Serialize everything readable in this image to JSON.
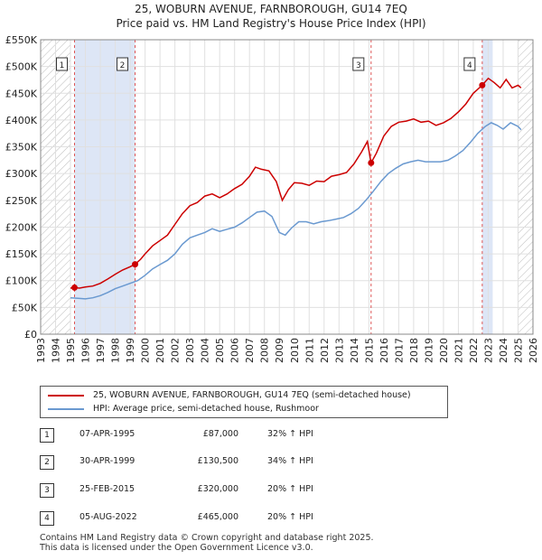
{
  "title_line1": "25, WOBURN AVENUE, FARNBOROUGH, GU14 7EQ",
  "title_line2": "Price paid vs. HM Land Registry's House Price Index (HPI)",
  "colors": {
    "property": "#cc0000",
    "hpi": "#6a99d0",
    "shade": "#dde6f6",
    "hatch": "#bbbbbb",
    "vline": "#dd5555"
  },
  "legend": {
    "property_label": "25, WOBURN AVENUE, FARNBOROUGH, GU14 7EQ (semi-detached house)",
    "hpi_label": "HPI: Average price, semi-detached house, Rushmoor"
  },
  "sales": [
    {
      "num": "1",
      "date": "07-APR-1995",
      "price": "£87,000",
      "hpi": "32% ↑ HPI"
    },
    {
      "num": "2",
      "date": "30-APR-1999",
      "price": "£130,500",
      "hpi": "34% ↑ HPI"
    },
    {
      "num": "3",
      "date": "25-FEB-2015",
      "price": "£320,000",
      "hpi": "20% ↑ HPI"
    },
    {
      "num": "4",
      "date": "05-AUG-2022",
      "price": "£465,000",
      "hpi": "20% ↑ HPI"
    }
  ],
  "footer_line1": "Contains HM Land Registry data © Crown copyright and database right 2025.",
  "footer_line2": "This data is licensed under the Open Government Licence v3.0.",
  "chart_data": {
    "type": "line",
    "xlim": [
      1993,
      2026
    ],
    "ylim": [
      0,
      550000
    ],
    "x_ticks": [
      1993,
      1994,
      1995,
      1996,
      1997,
      1998,
      1999,
      2000,
      2001,
      2002,
      2003,
      2004,
      2005,
      2006,
      2007,
      2008,
      2009,
      2010,
      2011,
      2012,
      2013,
      2014,
      2015,
      2016,
      2017,
      2018,
      2019,
      2020,
      2021,
      2022,
      2023,
      2024,
      2025,
      2026
    ],
    "y_ticks": [
      0,
      50000,
      100000,
      150000,
      200000,
      250000,
      300000,
      350000,
      400000,
      450000,
      500000,
      550000
    ],
    "y_tick_labels": [
      "£0",
      "£50K",
      "£100K",
      "£150K",
      "£200K",
      "£250K",
      "£300K",
      "£350K",
      "£400K",
      "£450K",
      "£500K",
      "£550K"
    ],
    "grid": true,
    "hatched_before": 1995.0,
    "hatched_after": 2025.0,
    "shaded_periods": [
      [
        1995.27,
        1999.33
      ],
      [
        2022.6,
        2023.3
      ]
    ],
    "sale_markers": [
      {
        "label": "1",
        "x": 1995.27,
        "y": 87000
      },
      {
        "label": "2",
        "x": 1999.33,
        "y": 130500
      },
      {
        "label": "3",
        "x": 2015.15,
        "y": 320000
      },
      {
        "label": "4",
        "x": 2022.6,
        "y": 465000
      }
    ],
    "series": [
      {
        "name": "25, WOBURN AVENUE, FARNBOROUGH, GU14 7EQ (semi-detached house)",
        "points": [
          [
            1995.0,
            86000
          ],
          [
            1995.27,
            87000
          ],
          [
            1995.6,
            86000
          ],
          [
            1996.0,
            88000
          ],
          [
            1996.5,
            90000
          ],
          [
            1997.0,
            95000
          ],
          [
            1997.5,
            103000
          ],
          [
            1998.0,
            112000
          ],
          [
            1998.5,
            120000
          ],
          [
            1999.0,
            126000
          ],
          [
            1999.33,
            130500
          ],
          [
            1999.7,
            140000
          ],
          [
            2000.0,
            150000
          ],
          [
            2000.5,
            165000
          ],
          [
            2001.0,
            175000
          ],
          [
            2001.5,
            185000
          ],
          [
            2002.0,
            205000
          ],
          [
            2002.5,
            225000
          ],
          [
            2003.0,
            240000
          ],
          [
            2003.5,
            246000
          ],
          [
            2004.0,
            258000
          ],
          [
            2004.5,
            262000
          ],
          [
            2005.0,
            255000
          ],
          [
            2005.5,
            262000
          ],
          [
            2006.0,
            272000
          ],
          [
            2006.5,
            280000
          ],
          [
            2007.0,
            295000
          ],
          [
            2007.4,
            312000
          ],
          [
            2007.8,
            308000
          ],
          [
            2008.3,
            305000
          ],
          [
            2008.8,
            285000
          ],
          [
            2009.2,
            250000
          ],
          [
            2009.6,
            270000
          ],
          [
            2010.0,
            283000
          ],
          [
            2010.5,
            282000
          ],
          [
            2011.0,
            278000
          ],
          [
            2011.5,
            286000
          ],
          [
            2012.0,
            285000
          ],
          [
            2012.5,
            295000
          ],
          [
            2013.0,
            298000
          ],
          [
            2013.5,
            302000
          ],
          [
            2014.0,
            318000
          ],
          [
            2014.5,
            340000
          ],
          [
            2014.9,
            360000
          ],
          [
            2015.15,
            320000
          ],
          [
            2015.5,
            338000
          ],
          [
            2016.0,
            370000
          ],
          [
            2016.5,
            388000
          ],
          [
            2017.0,
            396000
          ],
          [
            2017.5,
            398000
          ],
          [
            2018.0,
            402000
          ],
          [
            2018.5,
            396000
          ],
          [
            2019.0,
            398000
          ],
          [
            2019.5,
            390000
          ],
          [
            2020.0,
            395000
          ],
          [
            2020.5,
            403000
          ],
          [
            2021.0,
            415000
          ],
          [
            2021.5,
            430000
          ],
          [
            2022.0,
            450000
          ],
          [
            2022.6,
            465000
          ],
          [
            2023.0,
            478000
          ],
          [
            2023.4,
            470000
          ],
          [
            2023.8,
            460000
          ],
          [
            2024.2,
            476000
          ],
          [
            2024.6,
            460000
          ],
          [
            2025.0,
            465000
          ],
          [
            2025.2,
            460000
          ]
        ]
      },
      {
        "name": "HPI: Average price, semi-detached house, Rushmoor",
        "points": [
          [
            1995.0,
            68000
          ],
          [
            1995.5,
            67000
          ],
          [
            1996.0,
            66000
          ],
          [
            1996.5,
            68000
          ],
          [
            1997.0,
            72000
          ],
          [
            1997.5,
            78000
          ],
          [
            1998.0,
            85000
          ],
          [
            1998.5,
            90000
          ],
          [
            1999.0,
            95000
          ],
          [
            1999.5,
            100000
          ],
          [
            2000.0,
            110000
          ],
          [
            2000.5,
            122000
          ],
          [
            2001.0,
            130000
          ],
          [
            2001.5,
            138000
          ],
          [
            2002.0,
            150000
          ],
          [
            2002.5,
            168000
          ],
          [
            2003.0,
            180000
          ],
          [
            2003.5,
            185000
          ],
          [
            2004.0,
            190000
          ],
          [
            2004.5,
            197000
          ],
          [
            2005.0,
            192000
          ],
          [
            2005.5,
            196000
          ],
          [
            2006.0,
            200000
          ],
          [
            2006.5,
            208000
          ],
          [
            2007.0,
            218000
          ],
          [
            2007.5,
            228000
          ],
          [
            2008.0,
            230000
          ],
          [
            2008.5,
            220000
          ],
          [
            2009.0,
            190000
          ],
          [
            2009.4,
            185000
          ],
          [
            2009.8,
            198000
          ],
          [
            2010.3,
            210000
          ],
          [
            2010.8,
            210000
          ],
          [
            2011.3,
            206000
          ],
          [
            2011.8,
            210000
          ],
          [
            2012.3,
            212000
          ],
          [
            2012.8,
            215000
          ],
          [
            2013.3,
            218000
          ],
          [
            2013.8,
            225000
          ],
          [
            2014.3,
            235000
          ],
          [
            2014.8,
            250000
          ],
          [
            2015.3,
            267000
          ],
          [
            2015.8,
            285000
          ],
          [
            2016.3,
            300000
          ],
          [
            2016.8,
            310000
          ],
          [
            2017.3,
            318000
          ],
          [
            2017.8,
            322000
          ],
          [
            2018.3,
            325000
          ],
          [
            2018.8,
            322000
          ],
          [
            2019.3,
            322000
          ],
          [
            2019.8,
            322000
          ],
          [
            2020.3,
            325000
          ],
          [
            2020.8,
            333000
          ],
          [
            2021.3,
            343000
          ],
          [
            2021.8,
            358000
          ],
          [
            2022.3,
            375000
          ],
          [
            2022.8,
            388000
          ],
          [
            2023.2,
            395000
          ],
          [
            2023.6,
            390000
          ],
          [
            2024.0,
            383000
          ],
          [
            2024.5,
            395000
          ],
          [
            2025.0,
            388000
          ],
          [
            2025.2,
            382000
          ]
        ]
      }
    ]
  }
}
